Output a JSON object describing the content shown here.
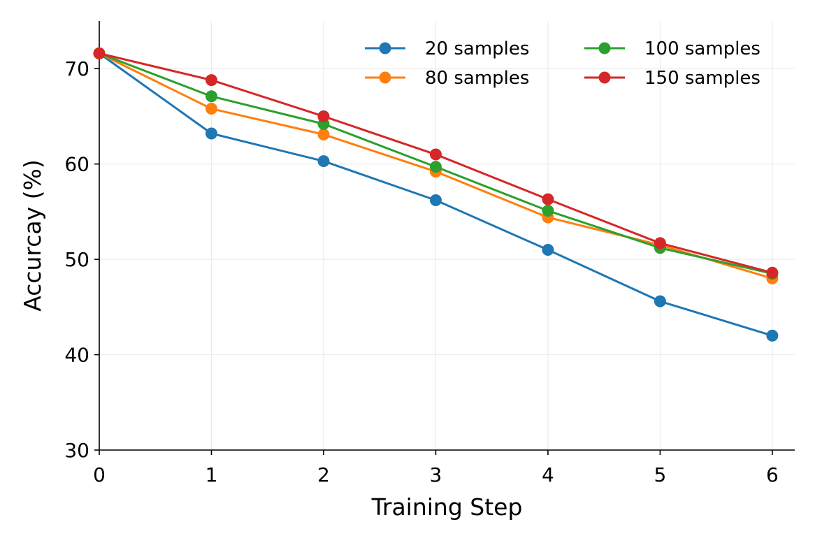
{
  "chart_data": {
    "type": "line",
    "title": "",
    "xlabel": "Training Step",
    "ylabel": "Accurcay (%)",
    "x": [
      0,
      1,
      2,
      3,
      4,
      5,
      6
    ],
    "xticks": [
      "0",
      "1",
      "2",
      "3",
      "4",
      "5",
      "6"
    ],
    "yticks": [
      "30",
      "40",
      "50",
      "60",
      "70"
    ],
    "xlim": [
      0,
      6.2
    ],
    "ylim": [
      30,
      75
    ],
    "grid": true,
    "legend_position": "top-right",
    "series": [
      {
        "name": "20 samples",
        "color": "#1f77b4",
        "values": [
          71.6,
          63.2,
          60.3,
          56.2,
          51.0,
          45.6,
          42.0
        ]
      },
      {
        "name": "80 samples",
        "color": "#ff7f0e",
        "values": [
          71.6,
          65.8,
          63.1,
          59.2,
          54.4,
          51.5,
          48.0
        ]
      },
      {
        "name": "100 samples",
        "color": "#2ca02c",
        "values": [
          71.6,
          67.1,
          64.2,
          59.7,
          55.1,
          51.2,
          48.5
        ]
      },
      {
        "name": "150 samples",
        "color": "#d62728",
        "values": [
          71.6,
          68.8,
          65.0,
          61.0,
          56.3,
          51.7,
          48.6
        ]
      }
    ]
  }
}
